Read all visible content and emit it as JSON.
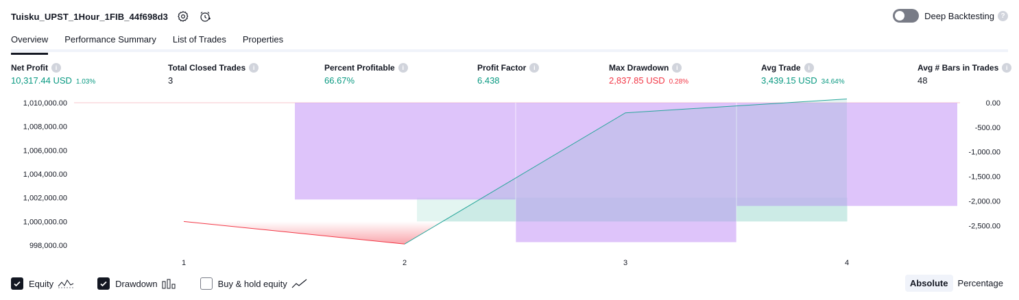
{
  "header": {
    "strategy_name": "Tuisku_UPST_1Hour_1FIB_44f698d3",
    "icons": [
      "settings-icon",
      "alert-clock-icon"
    ],
    "deep_backtesting_label": "Deep Backtesting",
    "deep_backtesting_enabled": false
  },
  "tabs": [
    {
      "label": "Overview",
      "active": true
    },
    {
      "label": "Performance Summary",
      "active": false
    },
    {
      "label": "List of Trades",
      "active": false
    },
    {
      "label": "Properties",
      "active": false
    }
  ],
  "stats": [
    {
      "label": "Net Profit",
      "value": "10,317.44 USD",
      "pct": "1.03%",
      "color": "green"
    },
    {
      "label": "Total Closed Trades",
      "value": "3",
      "pct": "",
      "color": "dark"
    },
    {
      "label": "Percent Profitable",
      "value": "66.67%",
      "pct": "",
      "color": "green"
    },
    {
      "label": "Profit Factor",
      "value": "6.438",
      "pct": "",
      "color": "green"
    },
    {
      "label": "Max Drawdown",
      "value": "2,837.85 USD",
      "pct": "0.28%",
      "color": "red"
    },
    {
      "label": "Avg Trade",
      "value": "3,439.15 USD",
      "pct": "34.64%",
      "color": "green"
    },
    {
      "label": "Avg # Bars in Trades",
      "value": "48",
      "pct": "",
      "color": "dark"
    }
  ],
  "chart_data": {
    "type": "line",
    "x": [
      1,
      2,
      3,
      4
    ],
    "left_axis": {
      "ticks": [
        "1,010,000.00",
        "1,008,000.00",
        "1,006,000.00",
        "1,004,000.00",
        "1,002,000.00",
        "1,000,000.00",
        "998,000.00"
      ],
      "ylim": [
        998000,
        1010000
      ]
    },
    "right_axis": {
      "ticks": [
        "0.00",
        "-500.00",
        "-1,000.00",
        "-1,500.00",
        "-2,000.00",
        "-2,500.00"
      ],
      "ylim": [
        -2900,
        0
      ]
    },
    "equity": [
      1000000,
      998100,
      1009150,
      1010317.44
    ],
    "buy_hold_equity": [
      1000000,
      1002000,
      1000000,
      1000000
    ],
    "drawdown_bars": [
      {
        "trade": 2,
        "value": -1970
      },
      {
        "trade": 3,
        "value": -2837.85
      },
      {
        "trade": 4,
        "value": -2100
      }
    ],
    "colors": {
      "equity_up": "#26a69a",
      "equity_down": "#f23645",
      "drawdown": "#cfa8f7",
      "buy_hold_fill": "#e3f5f1"
    }
  },
  "legend": {
    "equity": {
      "label": "Equity",
      "checked": true
    },
    "drawdown": {
      "label": "Drawdown",
      "checked": true
    },
    "buy_hold": {
      "label": "Buy & hold equity",
      "checked": false
    }
  },
  "mode": {
    "absolute_label": "Absolute",
    "percentage_label": "Percentage",
    "active": "absolute"
  }
}
